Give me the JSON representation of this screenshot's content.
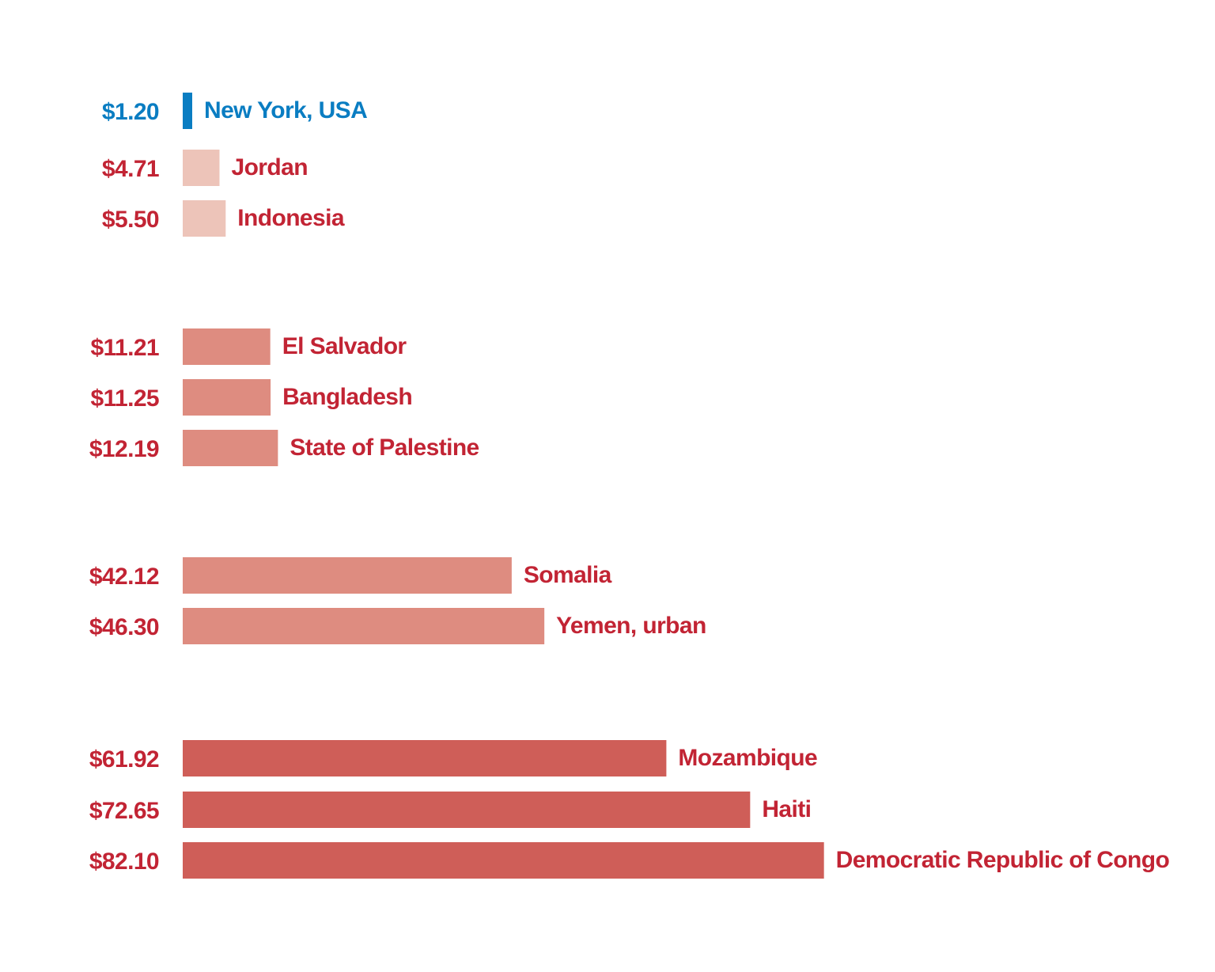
{
  "chart_data": {
    "type": "bar",
    "orientation": "horizontal",
    "categories": [
      "New York, USA",
      "Jordan",
      "Indonesia",
      "El Salvador",
      "Bangladesh",
      "State of Palestine",
      "Somalia",
      "Yemen, urban",
      "Mozambique",
      "Haiti",
      "Democratic Republic of Congo"
    ],
    "values": [
      1.2,
      4.71,
      5.5,
      11.21,
      11.25,
      12.19,
      42.12,
      46.3,
      61.92,
      72.65,
      82.1
    ],
    "value_labels": [
      "$1.20",
      "$4.71",
      "$5.50",
      "$11.21",
      "$11.25",
      "$12.19",
      "$42.12",
      "$46.30",
      "$61.92",
      "$72.65",
      "$82.10"
    ],
    "groups": [
      0,
      1,
      1,
      2,
      2,
      2,
      3,
      3,
      4,
      4,
      4
    ],
    "group_colors": [
      "#0a7dc2",
      "#edc4b9",
      "#de8c80",
      "#de8c80",
      "#cf5e58"
    ],
    "text_colors": [
      "#0a7dc2",
      "#c22434",
      "#c22434",
      "#c22434",
      "#c22434",
      "#c22434",
      "#c22434",
      "#c22434",
      "#c22434",
      "#c22434",
      "#c22434"
    ],
    "grid": false,
    "legend": "none"
  }
}
